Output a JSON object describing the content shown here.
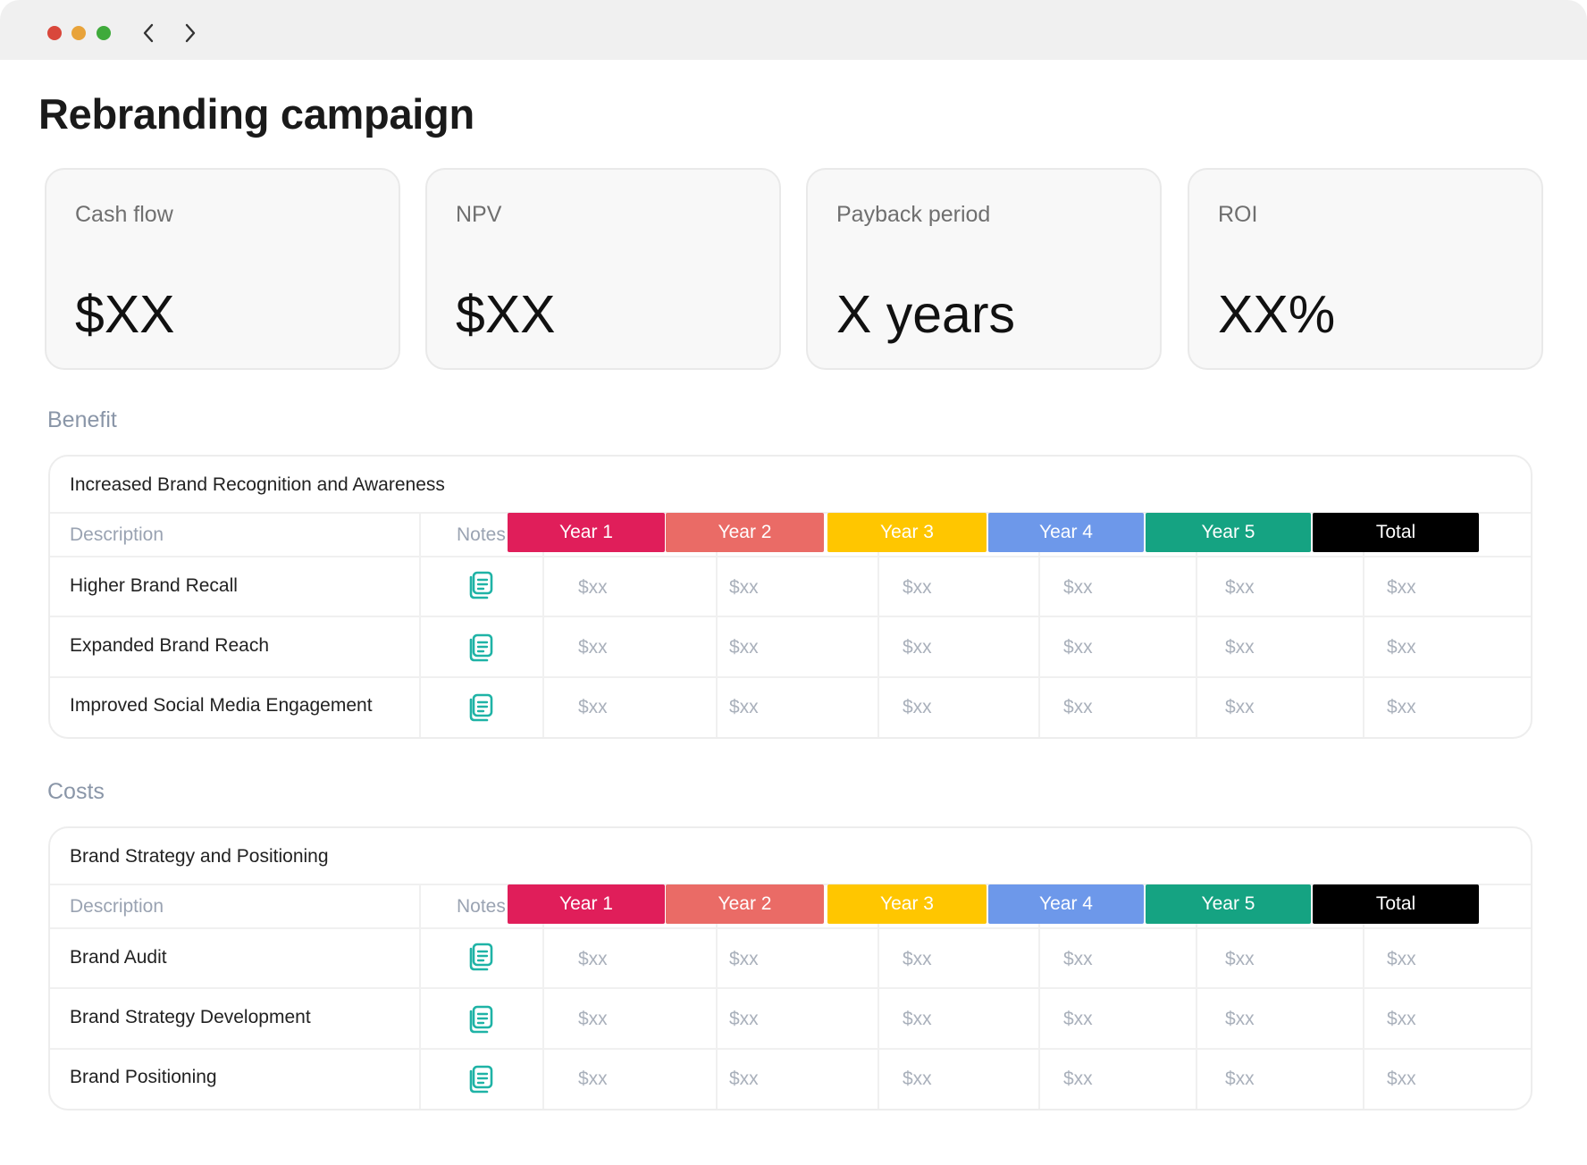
{
  "title": "Rebranding campaign",
  "metrics": [
    {
      "label": "Cash flow",
      "value": "$XX"
    },
    {
      "label": "NPV",
      "value": "$XX"
    },
    {
      "label": "Payback period",
      "value": "X years"
    },
    {
      "label": "ROI",
      "value": "XX%"
    }
  ],
  "column_headers": {
    "description": "Description",
    "notes": "Notes",
    "years": [
      "Year 1",
      "Year 2",
      "Year 3",
      "Year 4",
      "Year 5",
      "Total"
    ]
  },
  "year_colors": [
    "#e01e5a",
    "#ea6b66",
    "#ffc600",
    "#6d98ea",
    "#15a382",
    "#000000"
  ],
  "sections": [
    {
      "label": "Benefit",
      "table_title": "Increased Brand Recognition and Awareness",
      "rows": [
        {
          "description": "Higher Brand Recall",
          "values": [
            "$xx",
            "$xx",
            "$xx",
            "$xx",
            "$xx",
            "$xx"
          ]
        },
        {
          "description": "Expanded Brand Reach",
          "values": [
            "$xx",
            "$xx",
            "$xx",
            "$xx",
            "$xx",
            "$xx"
          ]
        },
        {
          "description": "Improved Social Media Engagement",
          "values": [
            "$xx",
            "$xx",
            "$xx",
            "$xx",
            "$xx",
            "$xx"
          ]
        }
      ]
    },
    {
      "label": "Costs",
      "table_title": "Brand Strategy and Positioning",
      "rows": [
        {
          "description": "Brand Audit",
          "values": [
            "$xx",
            "$xx",
            "$xx",
            "$xx",
            "$xx",
            "$xx"
          ]
        },
        {
          "description": "Brand Strategy Development",
          "values": [
            "$xx",
            "$xx",
            "$xx",
            "$xx",
            "$xx",
            "$xx"
          ]
        },
        {
          "description": "Brand Positioning",
          "values": [
            "$xx",
            "$xx",
            "$xx",
            "$xx",
            "$xx",
            "$xx"
          ]
        }
      ]
    }
  ],
  "icons": {
    "back": "chevron-left-icon",
    "forward": "chevron-right-icon",
    "notes": "notes-icon"
  },
  "note_icon_color": "#1fb3a6"
}
